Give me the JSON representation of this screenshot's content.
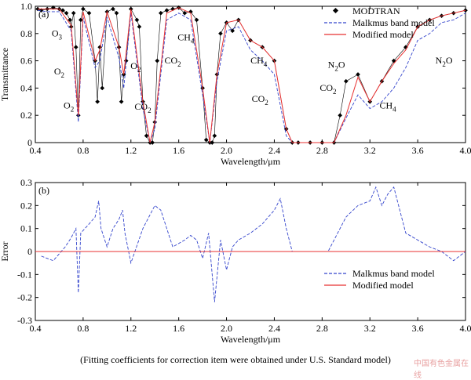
{
  "caption": "(Fitting coefficients for correction item were obtained under U.S. Standard   model)",
  "watermark": "中国有色金属在线",
  "colors": {
    "modtran": "#000000",
    "malkmus": "#3344cc",
    "modified": "#e83030",
    "zero_line": "#e83030"
  },
  "chart_data": [
    {
      "panel_label": "(a)",
      "type": "line",
      "xlabel": "Wavelength/μm",
      "ylabel": "Transmittance",
      "xlim": [
        0.4,
        4.0
      ],
      "ylim": [
        0,
        1.0
      ],
      "xticks": [
        "0.4",
        "0.8",
        "1.2",
        "1.6",
        "2.0",
        "2.4",
        "2.8",
        "3.2",
        "3.6",
        "4.0"
      ],
      "yticks": [
        "0",
        "0.2",
        "0.4",
        "0.6",
        "0.8",
        "1.0"
      ],
      "legend_position": "top-right",
      "series": [
        {
          "name": "MODTRAN",
          "style": "markers",
          "color": "#000000",
          "x": [
            0.42,
            0.45,
            0.5,
            0.55,
            0.6,
            0.63,
            0.66,
            0.69,
            0.7,
            0.72,
            0.74,
            0.76,
            0.78,
            0.8,
            0.85,
            0.9,
            0.92,
            0.94,
            0.96,
            1.0,
            1.05,
            1.08,
            1.1,
            1.12,
            1.14,
            1.16,
            1.2,
            1.25,
            1.27,
            1.3,
            1.33,
            1.36,
            1.38,
            1.4,
            1.42,
            1.45,
            1.5,
            1.55,
            1.6,
            1.65,
            1.7,
            1.75,
            1.8,
            1.83,
            1.86,
            1.88,
            1.9,
            1.92,
            1.95,
            2.0,
            2.05,
            2.1,
            2.2,
            2.3,
            2.4,
            2.5,
            2.55,
            2.6,
            2.7,
            2.8,
            2.9,
            2.95,
            3.0,
            3.1,
            3.2,
            3.3,
            3.4,
            3.5,
            3.6,
            3.7,
            3.8,
            3.9,
            4.0
          ],
          "y": [
            0.98,
            0.97,
            0.98,
            0.99,
            0.98,
            0.97,
            0.95,
            0.9,
            0.85,
            0.95,
            0.7,
            0.2,
            0.9,
            0.98,
            0.95,
            0.6,
            0.3,
            0.7,
            0.4,
            0.96,
            0.98,
            0.95,
            0.7,
            0.3,
            0.5,
            0.6,
            0.98,
            0.9,
            0.85,
            0.3,
            0.05,
            0.0,
            0.0,
            0.15,
            0.6,
            0.95,
            0.97,
            0.98,
            0.99,
            0.95,
            0.96,
            0.9,
            0.4,
            0.02,
            0.0,
            0.0,
            0.05,
            0.5,
            0.8,
            0.88,
            0.82,
            0.9,
            0.75,
            0.7,
            0.6,
            0.1,
            0.0,
            0.0,
            0.0,
            0.0,
            0.0,
            0.2,
            0.45,
            0.5,
            0.3,
            0.45,
            0.6,
            0.7,
            0.85,
            0.9,
            0.93,
            0.95,
            0.97
          ]
        },
        {
          "name": "Malkmus band model",
          "style": "dashed",
          "color": "#3344cc",
          "x": [
            0.42,
            0.5,
            0.6,
            0.7,
            0.76,
            0.8,
            0.9,
            0.94,
            1.0,
            1.1,
            1.14,
            1.2,
            1.3,
            1.36,
            1.4,
            1.5,
            1.6,
            1.7,
            1.8,
            1.86,
            1.92,
            2.0,
            2.1,
            2.2,
            2.3,
            2.4,
            2.5,
            2.55,
            2.8,
            2.9,
            3.0,
            3.1,
            3.2,
            3.3,
            3.4,
            3.5,
            3.6,
            3.7,
            3.8,
            3.9,
            4.0
          ],
          "y": [
            0.97,
            0.96,
            0.96,
            0.82,
            0.15,
            0.92,
            0.55,
            0.6,
            0.92,
            0.62,
            0.4,
            0.95,
            0.25,
            0.0,
            0.1,
            0.9,
            0.95,
            0.9,
            0.35,
            0.0,
            0.45,
            0.82,
            0.85,
            0.68,
            0.6,
            0.5,
            0.05,
            0.0,
            0.0,
            0.0,
            0.18,
            0.35,
            0.25,
            0.3,
            0.4,
            0.55,
            0.75,
            0.8,
            0.88,
            0.9,
            0.95
          ]
        },
        {
          "name": "Modified model",
          "style": "solid",
          "color": "#e83030",
          "x": [
            0.42,
            0.5,
            0.6,
            0.7,
            0.76,
            0.8,
            0.9,
            0.94,
            1.0,
            1.1,
            1.14,
            1.2,
            1.3,
            1.36,
            1.4,
            1.5,
            1.6,
            1.7,
            1.8,
            1.86,
            1.92,
            2.0,
            2.1,
            2.2,
            2.3,
            2.4,
            2.5,
            2.55,
            2.8,
            2.9,
            3.0,
            3.1,
            3.2,
            3.3,
            3.4,
            3.5,
            3.6,
            3.7,
            3.8,
            3.9,
            4.0
          ],
          "y": [
            0.98,
            0.98,
            0.98,
            0.86,
            0.2,
            0.96,
            0.6,
            0.68,
            0.96,
            0.7,
            0.5,
            0.98,
            0.3,
            0.0,
            0.15,
            0.95,
            0.99,
            0.95,
            0.4,
            0.0,
            0.5,
            0.88,
            0.9,
            0.75,
            0.7,
            0.6,
            0.1,
            0.0,
            0.0,
            0.0,
            0.2,
            0.48,
            0.3,
            0.45,
            0.58,
            0.68,
            0.85,
            0.9,
            0.93,
            0.95,
            0.97
          ]
        }
      ],
      "annotations": [
        {
          "label": "O",
          "sub": "3",
          "x": 0.58,
          "y": 0.78
        },
        {
          "label": "O",
          "sub": "2",
          "x": 0.6,
          "y": 0.5
        },
        {
          "label": "O",
          "sub": "2",
          "x": 0.68,
          "y": 0.25
        },
        {
          "label": "O",
          "sub": "2",
          "x": 1.24,
          "y": 0.54
        },
        {
          "label": "CO",
          "sub": "2",
          "x": 1.3,
          "y": 0.24
        },
        {
          "label": "CO",
          "sub": "2",
          "x": 1.55,
          "y": 0.58
        },
        {
          "label": "CH",
          "sub": "4",
          "x": 1.66,
          "y": 0.75
        },
        {
          "label": "CH",
          "sub": "4",
          "x": 2.27,
          "y": 0.58
        },
        {
          "label": "CO",
          "sub": "2",
          "x": 2.28,
          "y": 0.3
        },
        {
          "label": "CO",
          "sub": "2",
          "x": 2.85,
          "y": 0.38
        },
        {
          "label": "N",
          "sub": "2",
          "tail": "O",
          "x": 2.92,
          "y": 0.55
        },
        {
          "label": "CH",
          "sub": "4",
          "x": 3.35,
          "y": 0.25
        },
        {
          "label": "N",
          "sub": "2",
          "tail": "O",
          "x": 3.82,
          "y": 0.58
        }
      ]
    },
    {
      "panel_label": "(b)",
      "type": "line",
      "xlabel": "Wavelength/μm",
      "ylabel": "Error",
      "xlim": [
        0.4,
        4.0
      ],
      "ylim": [
        -0.3,
        0.3
      ],
      "xticks": [
        "0.4",
        "0.8",
        "1.2",
        "1.6",
        "2.0",
        "2.4",
        "2.8",
        "3.2",
        "3.6",
        "4.0"
      ],
      "yticks": [
        "-0.3",
        "-0.2",
        "-0.1",
        "0",
        "0.1",
        "0.2",
        "0.3"
      ],
      "legend_position": "bottom-right",
      "series": [
        {
          "name": "Malkmus band model",
          "style": "dashed",
          "color": "#3344cc",
          "x": [
            0.45,
            0.55,
            0.65,
            0.7,
            0.74,
            0.76,
            0.78,
            0.85,
            0.9,
            0.93,
            0.95,
            1.0,
            1.05,
            1.1,
            1.13,
            1.15,
            1.2,
            1.3,
            1.35,
            1.4,
            1.45,
            1.5,
            1.55,
            1.65,
            1.7,
            1.75,
            1.8,
            1.85,
            1.88,
            1.9,
            1.95,
            2.0,
            2.05,
            2.1,
            2.2,
            2.3,
            2.4,
            2.45,
            2.5,
            2.55,
            2.85,
            2.9,
            3.0,
            3.1,
            3.2,
            3.25,
            3.3,
            3.35,
            3.4,
            3.45,
            3.5,
            3.6,
            3.7,
            3.8,
            3.9,
            4.0
          ],
          "y": [
            -0.02,
            -0.04,
            0.02,
            0.06,
            0.1,
            -0.18,
            0.08,
            0.12,
            0.15,
            0.22,
            0.1,
            0.02,
            0.1,
            0.14,
            0.18,
            0.08,
            -0.05,
            0.1,
            0.15,
            0.2,
            0.18,
            0.1,
            0.02,
            0.05,
            0.07,
            0.05,
            -0.03,
            0.08,
            -0.1,
            -0.22,
            0.05,
            -0.08,
            0.02,
            0.05,
            0.08,
            0.12,
            0.18,
            0.23,
            0.1,
            0.0,
            0.0,
            0.05,
            0.15,
            0.2,
            0.22,
            0.28,
            0.2,
            0.25,
            0.28,
            0.18,
            0.08,
            0.05,
            0.02,
            0.0,
            -0.04,
            0.0
          ]
        },
        {
          "name": "Modified model",
          "style": "solid",
          "color": "#e83030",
          "x": [
            0.4,
            4.0
          ],
          "y": [
            0,
            0
          ]
        }
      ]
    }
  ]
}
